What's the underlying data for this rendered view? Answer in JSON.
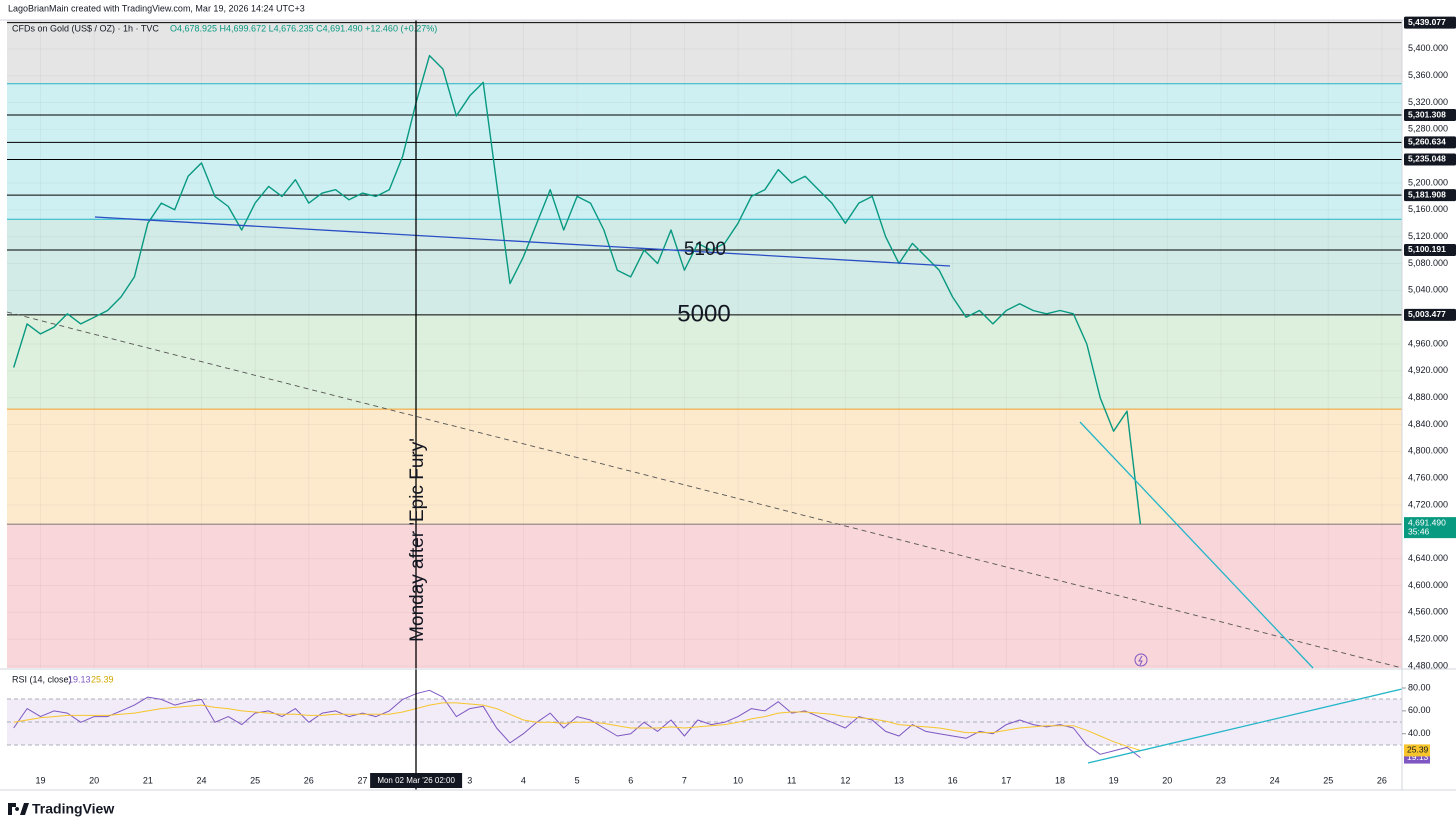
{
  "credit": "LagoBrianMain created with TradingView.com, Mar 19, 2026 14:24 UTC+3",
  "brand": "TradingView",
  "chart_data": [
    {
      "type": "line",
      "title": "CFDs on Gold (US$ / OZ) · 1h · TVC",
      "subtitle": "O4,678.925 H4,699.672 L4,676.235 C4,691.490 +12.460 (+0.27%)",
      "categories": [
        null,
        null,
        "19",
        null,
        null,
        null,
        "20",
        null,
        null,
        null,
        "21",
        null,
        null,
        null,
        "24",
        null,
        null,
        null,
        "25",
        null,
        null,
        null,
        "26",
        null,
        null,
        null,
        "27",
        null,
        null,
        null,
        "Mon 02 Mar '26  02:00",
        null,
        null,
        null,
        "3",
        null,
        null,
        null,
        "4",
        null,
        null,
        null,
        "5",
        null,
        null,
        null,
        "6",
        null,
        null,
        null,
        "7",
        null,
        null,
        null,
        "10",
        null,
        null,
        null,
        "11",
        null,
        null,
        null,
        "12",
        null,
        null,
        null,
        "13",
        null,
        null,
        null,
        "16",
        null,
        null,
        null,
        "17",
        null,
        null,
        null,
        "18",
        null,
        null,
        null,
        "19",
        null,
        null,
        null,
        "20",
        null,
        null,
        null,
        "23",
        null,
        null,
        null,
        "24",
        null,
        null,
        null,
        "25",
        null,
        null,
        null,
        "26",
        null
      ],
      "values": [
        4925,
        4990,
        4975,
        4985,
        5005,
        4990,
        5000,
        5010,
        5030,
        5060,
        5140,
        5170,
        5160,
        5210,
        5230,
        5180,
        5165,
        5130,
        5170,
        5195,
        5180,
        5205,
        5170,
        5185,
        5190,
        5175,
        5185,
        5180,
        5190,
        5240,
        5320,
        5390,
        5370,
        5300,
        5330,
        5350,
        5200,
        5050,
        5090,
        5140,
        5190,
        5130,
        5180,
        5170,
        5130,
        5070,
        5060,
        5100,
        5080,
        5130,
        5070,
        5110,
        5100,
        5110,
        5140,
        5180,
        5190,
        5220,
        5200,
        5210,
        5190,
        5170,
        5140,
        5170,
        5180,
        5120,
        5080,
        5110,
        5090,
        5070,
        5030,
        5000,
        5010,
        4990,
        5010,
        5020,
        5010,
        5005,
        5010,
        5005,
        4960,
        4880,
        4830,
        4860,
        4691.49,
        null,
        null,
        null,
        null,
        null,
        null,
        null,
        null,
        null,
        null,
        null,
        null,
        null,
        null,
        null,
        null,
        null,
        null,
        null
      ],
      "color": "#089981",
      "ylim": [
        4477,
        5443
      ],
      "yticks": [
        {
          "value": 4480,
          "label": "4,480.000"
        },
        {
          "value": 4520,
          "label": "4,520.000"
        },
        {
          "value": 4560,
          "label": "4,560.000"
        },
        {
          "value": 4600,
          "label": "4,600.000"
        },
        {
          "value": 4640,
          "label": "4,640.000"
        },
        {
          "value": 4720,
          "label": "4,720.000"
        },
        {
          "value": 4760,
          "label": "4,760.000"
        },
        {
          "value": 4800,
          "label": "4,800.000"
        },
        {
          "value": 4840,
          "label": "4,840.000"
        },
        {
          "value": 4880,
          "label": "4,880.000"
        },
        {
          "value": 4920,
          "label": "4,920.000"
        },
        {
          "value": 4960,
          "label": "4,960.000"
        },
        {
          "value": 5040,
          "label": "5,040.000"
        },
        {
          "value": 5080,
          "label": "5,080.000"
        },
        {
          "value": 5120,
          "label": "5,120.000"
        },
        {
          "value": 5160,
          "label": "5,160.000"
        },
        {
          "value": 5200,
          "label": "5,200.000"
        },
        {
          "value": 5280,
          "label": "5,280.000"
        },
        {
          "value": 5320,
          "label": "5,320.000"
        },
        {
          "value": 5360,
          "label": "5,360.000"
        },
        {
          "value": 5400,
          "label": "5,400.000"
        }
      ],
      "grid": true,
      "zones": [
        {
          "from": 5348,
          "to": 5443,
          "color": "#e5e5e5"
        },
        {
          "from": 5146,
          "to": 5348,
          "color": "#cff0f3"
        },
        {
          "from": 5003,
          "to": 5146,
          "color": "#d3ebe6"
        },
        {
          "from": 4863,
          "to": 5003,
          "color": "#ddefdd"
        },
        {
          "from": 4691.49,
          "to": 4863,
          "color": "#fde9cc"
        },
        {
          "from": 4477,
          "to": 4691.49,
          "color": "#f9d6da"
        }
      ],
      "guides": [
        {
          "value": 5348,
          "color": "#22b5c8"
        },
        {
          "value": 5146,
          "color": "#22b5c8"
        },
        {
          "value": 4863,
          "color": "#f0a030"
        }
      ],
      "levels": [
        {
          "value": 5439.077,
          "label": "5,439.077"
        },
        {
          "value": 5301.308,
          "label": "5,301.308"
        },
        {
          "value": 5260.634,
          "label": "5,260.634"
        },
        {
          "value": 5235.048,
          "label": "5,235.048"
        },
        {
          "value": 5181.908,
          "label": "5,181.908"
        },
        {
          "value": 5100.191,
          "label": "5,100.191"
        },
        {
          "value": 5003.477,
          "label": "5,003.477"
        }
      ],
      "last": {
        "value": 4691.49,
        "label": "4,691.490"
      },
      "countdown": "35:46",
      "annotations": [
        "Monday after 'Epic Fury'",
        "5100",
        "5000"
      ]
    },
    {
      "type": "line",
      "title": "RSI (14, close)",
      "ylim": [
        10,
        94
      ],
      "yticks": [
        {
          "value": 40,
          "label": "40.00"
        },
        {
          "value": 60,
          "label": "60.00"
        },
        {
          "value": 80,
          "label": "80.00"
        }
      ],
      "series": [
        {
          "color": "#7e57c2",
          "last": 19.13,
          "values": [
            45,
            62,
            55,
            60,
            58,
            50,
            55,
            55,
            60,
            65,
            72,
            70,
            65,
            68,
            70,
            50,
            55,
            48,
            58,
            60,
            55,
            62,
            50,
            58,
            60,
            55,
            58,
            55,
            60,
            70,
            75,
            78,
            72,
            55,
            62,
            64,
            45,
            32,
            40,
            50,
            58,
            45,
            55,
            52,
            45,
            38,
            40,
            50,
            42,
            52,
            38,
            52,
            48,
            50,
            55,
            62,
            60,
            68,
            58,
            60,
            55,
            50,
            45,
            55,
            52,
            42,
            38,
            48,
            42,
            40,
            38,
            36,
            42,
            40,
            48,
            52,
            48,
            46,
            48,
            45,
            30,
            22,
            25,
            28,
            19.13,
            null,
            null,
            null,
            null,
            null,
            null,
            null,
            null,
            null,
            null,
            null,
            null,
            null,
            null,
            null,
            null,
            null,
            null,
            null
          ]
        },
        {
          "color": "#f7c52b",
          "last": 25.39,
          "values": [
            50,
            52,
            54,
            55,
            56,
            56,
            56,
            56,
            57,
            58,
            60,
            62,
            63,
            64,
            65,
            63,
            62,
            60,
            59,
            58,
            57,
            57,
            56,
            56,
            57,
            57,
            57,
            57,
            57,
            59,
            62,
            65,
            67,
            67,
            66,
            65,
            62,
            57,
            52,
            50,
            50,
            49,
            50,
            50,
            49,
            47,
            45,
            45,
            45,
            46,
            45,
            46,
            47,
            48,
            50,
            53,
            55,
            58,
            59,
            59,
            58,
            57,
            55,
            54,
            53,
            51,
            48,
            47,
            46,
            45,
            43,
            41,
            41,
            41,
            43,
            45,
            46,
            47,
            47,
            47,
            43,
            38,
            33,
            29,
            25.39,
            null,
            null,
            null,
            null,
            null,
            null,
            null,
            null,
            null,
            null,
            null,
            null,
            null,
            null,
            null,
            null,
            null,
            null,
            null
          ]
        }
      ]
    }
  ]
}
